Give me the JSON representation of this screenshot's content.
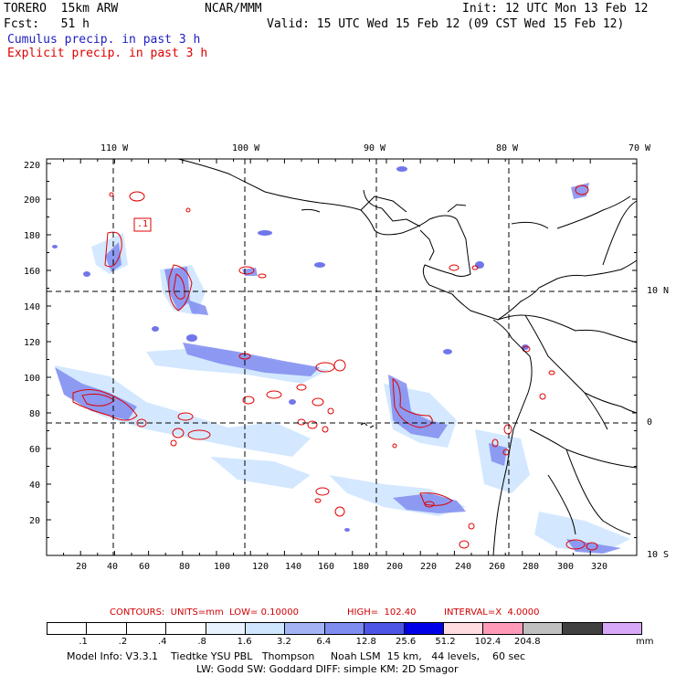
{
  "header": {
    "model": "TORERO  15km ARW",
    "org": "NCAR/MMM",
    "init": "Init: 12 UTC Mon 13 Feb 12",
    "fcst": "Fcst:   51 h",
    "valid": "Valid: 15 UTC Wed 15 Feb 12 (09 CST Wed 15 Feb 12)",
    "cumulus": "Cumulus precip. in past 3 h",
    "explicit": "Explicit precip. in past 3 h"
  },
  "axes": {
    "top_lon": [
      "110 W",
      "100 W",
      "90 W",
      "80 W",
      "70 W"
    ],
    "right_lat": [
      "10 N",
      "0",
      "10 S"
    ],
    "left_y": [
      "220",
      "200",
      "180",
      "160",
      "140",
      "120",
      "100",
      "80",
      "60",
      "40",
      "20"
    ],
    "bottom_x": [
      "20",
      "40",
      "60",
      "80",
      "100",
      "120",
      "140",
      "160",
      "180",
      "200",
      "220",
      "240",
      "260",
      "280",
      "300",
      "320"
    ]
  },
  "annotation": {
    "label": ".1"
  },
  "contour_info": {
    "contours": "CONTOURS:  UNITS=mm  LOW= 0.10000",
    "high": "HIGH=  102.40",
    "interval": "INTERVAL=X  4.0000"
  },
  "colorbar": {
    "colors": [
      "#ffffff",
      "#ffffff",
      "#ffffff",
      "#ffffff",
      "#e8f2ff",
      "#cfe6ff",
      "#a3b4f5",
      "#7f8cf0",
      "#4d55e6",
      "#0000e8",
      "#ffdce0",
      "#ff9ab8",
      "#c0c0c0",
      "#404040",
      "#d8a8f8"
    ],
    "labels": [
      ".1",
      ".2",
      ".4",
      ".8",
      "1.6",
      "3.2",
      "6.4",
      "12.8",
      "25.6",
      "51.2",
      "102.4",
      "204.8"
    ],
    "units": "mm"
  },
  "model_info": {
    "line1": "Model Info: V3.3.1    Tiedtke YSU PBL   Thompson     Noah LSM  15 km,   44 levels,    60 sec",
    "line2": "LW: Godd SW: Goddard DIFF: simple KM: 2D Smagor"
  }
}
